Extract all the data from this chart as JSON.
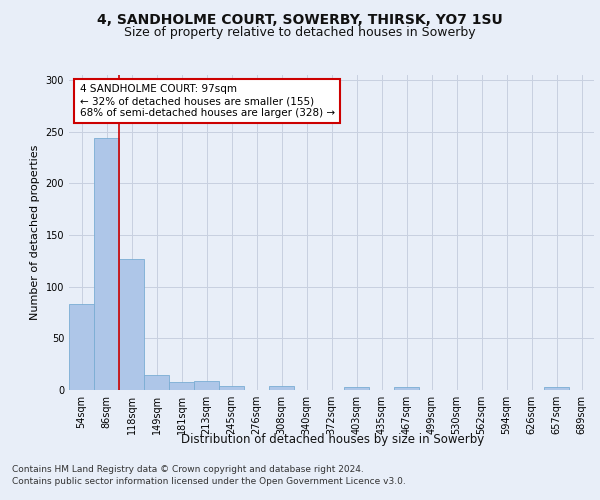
{
  "title1": "4, SANDHOLME COURT, SOWERBY, THIRSK, YO7 1SU",
  "title2": "Size of property relative to detached houses in Sowerby",
  "xlabel": "Distribution of detached houses by size in Sowerby",
  "ylabel": "Number of detached properties",
  "categories": [
    "54sqm",
    "86sqm",
    "118sqm",
    "149sqm",
    "181sqm",
    "213sqm",
    "245sqm",
    "276sqm",
    "308sqm",
    "340sqm",
    "372sqm",
    "403sqm",
    "435sqm",
    "467sqm",
    "499sqm",
    "530sqm",
    "562sqm",
    "594sqm",
    "626sqm",
    "657sqm",
    "689sqm"
  ],
  "values": [
    83,
    244,
    127,
    15,
    8,
    9,
    4,
    0,
    4,
    0,
    0,
    3,
    0,
    3,
    0,
    0,
    0,
    0,
    0,
    3,
    0
  ],
  "bar_color": "#aec6e8",
  "bar_edge_color": "#7aadd4",
  "vline_color": "#cc0000",
  "annotation_title": "4 SANDHOLME COURT: 97sqm",
  "annotation_line2": "← 32% of detached houses are smaller (155)",
  "annotation_line3": "68% of semi-detached houses are larger (328) →",
  "annotation_box_facecolor": "#ffffff",
  "annotation_box_edgecolor": "#cc0000",
  "ylim_max": 305,
  "yticks": [
    0,
    50,
    100,
    150,
    200,
    250,
    300
  ],
  "footer1": "Contains HM Land Registry data © Crown copyright and database right 2024.",
  "footer2": "Contains public sector information licensed under the Open Government Licence v3.0.",
  "bg_color": "#e8eef8",
  "grid_color": "#c8d0e0",
  "title1_fontsize": 10,
  "title2_fontsize": 9,
  "xlabel_fontsize": 8.5,
  "ylabel_fontsize": 8,
  "tick_fontsize": 7,
  "footer_fontsize": 6.5,
  "annotation_fontsize": 7.5
}
